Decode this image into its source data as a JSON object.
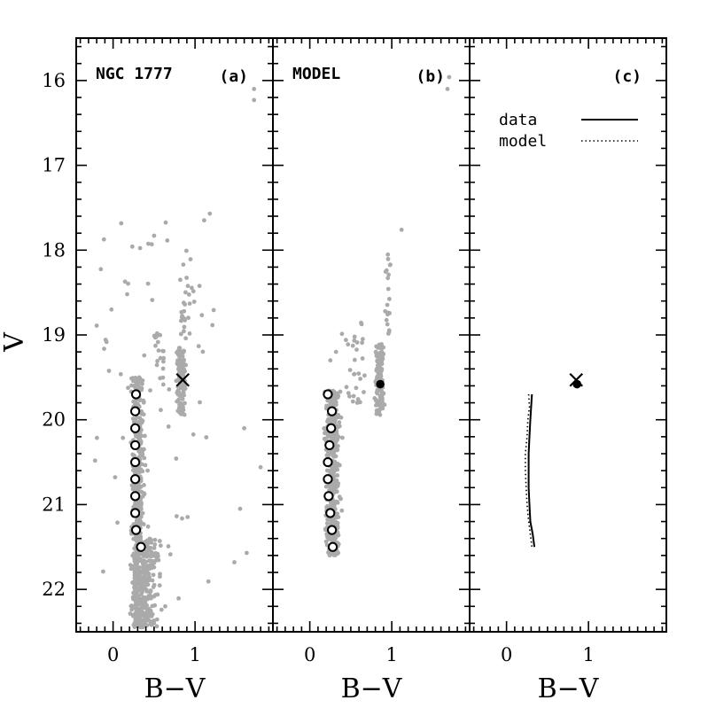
{
  "chart_data": [
    {
      "panel": "a",
      "type": "scatter",
      "title": "NGC 1777",
      "panel_letter": "(a)",
      "xlabel": "B−V",
      "ylabel": "V",
      "xlim": [
        -0.45,
        1.95
      ],
      "ylim": [
        22.5,
        15.5
      ],
      "y_inverted": true,
      "x_ticks": [
        {
          "value": 0,
          "label": "0"
        },
        {
          "value": 1,
          "label": "1"
        }
      ],
      "y_ticks": [
        {
          "value": 16,
          "label": "16"
        },
        {
          "value": 17,
          "label": "17"
        },
        {
          "value": 18,
          "label": "18"
        },
        {
          "value": 19,
          "label": "19"
        },
        {
          "value": 20,
          "label": "20"
        },
        {
          "value": 21,
          "label": "21"
        },
        {
          "value": 22,
          "label": "22"
        }
      ],
      "point_color": "#aaaaaa",
      "series": [
        {
          "role": "main-sequence-ridge",
          "marker": "open-circle",
          "points": [
            [
              0.28,
              19.7
            ],
            [
              0.27,
              19.9
            ],
            [
              0.27,
              20.1
            ],
            [
              0.27,
              20.3
            ],
            [
              0.27,
              20.5
            ],
            [
              0.27,
              20.7
            ],
            [
              0.27,
              20.9
            ],
            [
              0.27,
              21.1
            ],
            [
              0.28,
              21.3
            ],
            [
              0.34,
              21.5
            ]
          ]
        },
        {
          "role": "red-clump",
          "marker": "cross",
          "points": [
            [
              0.85,
              19.53
            ]
          ]
        }
      ],
      "scatter_groups": [
        {
          "role": "main-sequence",
          "count": 520,
          "x_center": 0.3,
          "x_spread": 0.07,
          "y_range": [
            19.5,
            22.45
          ]
        },
        {
          "role": "lower-main-sequence",
          "count": 200,
          "x_center": 0.42,
          "x_spread": 0.12,
          "y_range": [
            21.4,
            22.45
          ]
        },
        {
          "role": "red-clump",
          "count": 110,
          "x_center": 0.83,
          "x_spread": 0.05,
          "y_range": [
            19.15,
            19.95
          ]
        },
        {
          "role": "red-giant-branch",
          "count": 24,
          "x_center": 0.88,
          "x_spread": 0.07,
          "y_range": [
            18.1,
            19.1
          ]
        },
        {
          "role": "subgiants",
          "count": 18,
          "x_center": 0.58,
          "x_spread": 0.1,
          "y_range": [
            19.0,
            19.7
          ]
        },
        {
          "role": "field",
          "count": 60,
          "x_center": 0.5,
          "x_spread": 0.75,
          "y_range": [
            17.5,
            22.4
          ]
        }
      ],
      "extra_points": [
        [
          1.72,
          16.1
        ],
        [
          1.72,
          16.23
        ],
        [
          1.18,
          17.57
        ],
        [
          0.5,
          17.83
        ],
        [
          -0.02,
          18.7
        ],
        [
          1.6,
          20.1
        ],
        [
          1.8,
          20.56
        ],
        [
          1.55,
          21.05
        ],
        [
          1.48,
          21.68
        ],
        [
          1.63,
          21.57
        ]
      ]
    },
    {
      "panel": "b",
      "type": "scatter",
      "title": "MODEL",
      "panel_letter": "(b)",
      "xlabel": "B−V",
      "xlim": [
        -0.45,
        1.95
      ],
      "ylim": [
        22.5,
        15.5
      ],
      "x_ticks": [
        {
          "value": 0,
          "label": "0"
        },
        {
          "value": 1,
          "label": "1"
        }
      ],
      "point_color": "#aaaaaa",
      "series": [
        {
          "role": "main-sequence-ridge",
          "marker": "open-circle",
          "points": [
            [
              0.22,
              19.7
            ],
            [
              0.27,
              19.9
            ],
            [
              0.26,
              20.1
            ],
            [
              0.24,
              20.3
            ],
            [
              0.22,
              20.5
            ],
            [
              0.22,
              20.7
            ],
            [
              0.23,
              20.9
            ],
            [
              0.25,
              21.1
            ],
            [
              0.27,
              21.3
            ],
            [
              0.28,
              21.5
            ]
          ]
        },
        {
          "role": "red-clump",
          "marker": "filled-circle",
          "points": [
            [
              0.86,
              19.58
            ]
          ]
        }
      ],
      "scatter_groups": [
        {
          "role": "main-sequence",
          "count": 460,
          "x_center": 0.28,
          "x_spread": 0.08,
          "y_range": [
            19.65,
            21.6
          ]
        },
        {
          "role": "red-clump",
          "count": 150,
          "x_center": 0.85,
          "x_spread": 0.05,
          "y_range": [
            19.1,
            19.95
          ]
        },
        {
          "role": "red-giant-branch",
          "count": 20,
          "x_center": 0.95,
          "x_spread": 0.05,
          "y_range": [
            18.0,
            19.0
          ]
        },
        {
          "role": "subgiants",
          "count": 30,
          "x_center": 0.55,
          "x_spread": 0.12,
          "y_range": [
            18.8,
            19.8
          ]
        }
      ],
      "extra_points": [
        [
          1.68,
          16.1
        ],
        [
          1.7,
          15.96
        ],
        [
          1.12,
          17.76
        ],
        [
          0.25,
          19.3
        ],
        [
          0.32,
          19.2
        ]
      ]
    },
    {
      "panel": "c",
      "type": "line",
      "panel_letter": "(c)",
      "xlabel": "B−V",
      "xlim": [
        -0.45,
        1.95
      ],
      "ylim": [
        22.5,
        15.5
      ],
      "x_ticks": [
        {
          "value": 0,
          "label": "0"
        },
        {
          "value": 1,
          "label": "1"
        }
      ],
      "legend": [
        {
          "label": "data",
          "style": "solid"
        },
        {
          "label": "model",
          "style": "dotted"
        }
      ],
      "legend_position": "top-right",
      "series": [
        {
          "name": "data",
          "style": "solid",
          "points": [
            [
              0.31,
              19.7
            ],
            [
              0.3,
              19.85
            ],
            [
              0.29,
              20.0
            ],
            [
              0.28,
              20.2
            ],
            [
              0.27,
              20.4
            ],
            [
              0.27,
              20.6
            ],
            [
              0.27,
              20.8
            ],
            [
              0.28,
              21.0
            ],
            [
              0.29,
              21.2
            ],
            [
              0.32,
              21.35
            ],
            [
              0.34,
              21.5
            ]
          ]
        },
        {
          "name": "model",
          "style": "dotted",
          "points": [
            [
              0.27,
              19.7
            ],
            [
              0.28,
              19.85
            ],
            [
              0.26,
              20.0
            ],
            [
              0.25,
              20.2
            ],
            [
              0.23,
              20.4
            ],
            [
              0.23,
              20.6
            ],
            [
              0.24,
              20.8
            ],
            [
              0.25,
              21.0
            ],
            [
              0.27,
              21.2
            ],
            [
              0.29,
              21.35
            ],
            [
              0.31,
              21.5
            ]
          ]
        }
      ],
      "markers": [
        {
          "role": "data-clump",
          "marker": "cross",
          "x": 0.85,
          "y": 19.53
        },
        {
          "role": "model-clump",
          "marker": "filled-circle",
          "x": 0.86,
          "y": 19.58
        }
      ]
    }
  ]
}
